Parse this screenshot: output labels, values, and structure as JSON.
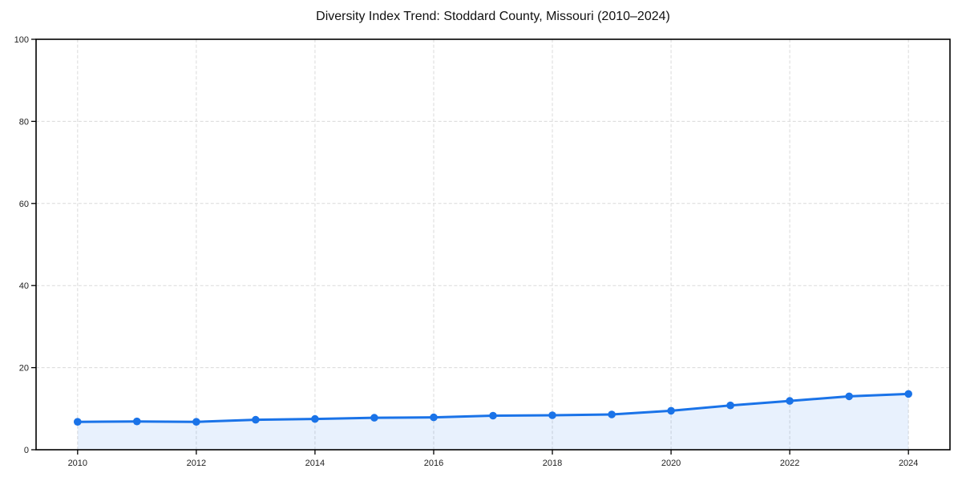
{
  "chart_data": {
    "type": "line",
    "title": "Diversity Index Trend: Stoddard County, Missouri (2010–2024)",
    "series_name": "Diversity Index",
    "x": [
      2010,
      2011,
      2012,
      2013,
      2014,
      2015,
      2016,
      2017,
      2018,
      2019,
      2020,
      2021,
      2022,
      2023,
      2024
    ],
    "values": [
      6.8,
      6.9,
      6.8,
      7.3,
      7.5,
      7.8,
      7.9,
      8.3,
      8.4,
      8.6,
      9.5,
      10.8,
      11.9,
      13.0,
      13.6
    ],
    "xlabel": "",
    "ylabel": "",
    "xlim": [
      2009.3,
      2024.7
    ],
    "ylim": [
      0,
      100
    ],
    "xticks": [
      2010,
      2012,
      2014,
      2016,
      2018,
      2020,
      2022,
      2024
    ],
    "yticks": [
      0,
      20,
      40,
      60,
      80,
      100
    ],
    "grid": true,
    "grid_style": "dashed",
    "legend": "none",
    "area_fill": true,
    "area_opacity": 0.1,
    "marker": "circle",
    "colors": {
      "line": "#1a73e8",
      "grid": "#dadada",
      "axis": "#000000",
      "tick_label": "#222222",
      "title": "#111111",
      "background": "#ffffff"
    }
  }
}
